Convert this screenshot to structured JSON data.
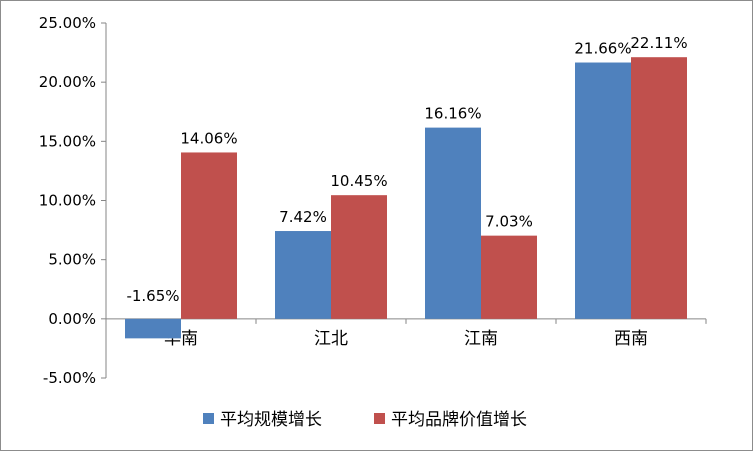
{
  "chart_data": {
    "type": "bar",
    "title": "",
    "xlabel": "",
    "ylabel": "",
    "categories": [
      "华南",
      "江北",
      "江南",
      "西南"
    ],
    "series": [
      {
        "name": "平均规模增长",
        "color": "#4f81bd",
        "values": [
          -1.65,
          7.42,
          16.16,
          21.66
        ],
        "labels": [
          "-1.65%",
          "7.42%",
          "16.16%",
          "21.66%"
        ]
      },
      {
        "name": "平均品牌价值增长",
        "color": "#c0504d",
        "values": [
          14.06,
          10.45,
          7.03,
          22.11
        ],
        "labels": [
          "14.06%",
          "10.45%",
          "7.03%",
          "22.11%"
        ]
      }
    ],
    "ylim": [
      -5,
      25
    ],
    "yticks": [
      25,
      20,
      15,
      10,
      5,
      0,
      -5
    ],
    "ytick_labels": [
      "25.00%",
      "20.00%",
      "15.00%",
      "10.00%",
      "5.00%",
      "0.00%",
      "-5.00%"
    ],
    "grid": false,
    "legend_position": "bottom"
  }
}
